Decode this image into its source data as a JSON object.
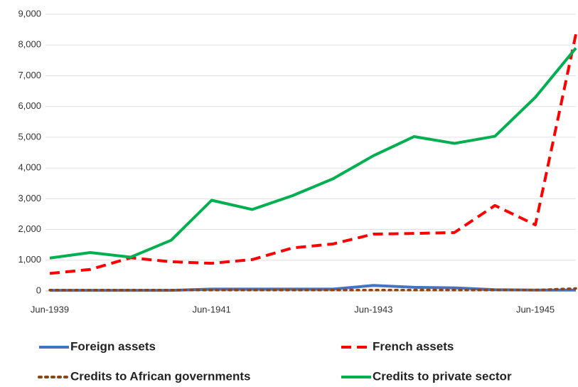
{
  "chart_data": {
    "type": "line",
    "categories": [
      "Jun-1939",
      null,
      null,
      null,
      "Jun-1941",
      null,
      null,
      null,
      "Jun-1943",
      null,
      null,
      null,
      "Jun-1945",
      null
    ],
    "series": [
      {
        "name": "Foreign assets",
        "color": "#4472c4",
        "style": "solid",
        "values": [
          20,
          20,
          20,
          20,
          60,
          60,
          60,
          60,
          180,
          120,
          100,
          40,
          30,
          30
        ]
      },
      {
        "name": "French assets",
        "color": "#ff0000",
        "style": "dashed",
        "values": [
          570,
          700,
          1080,
          950,
          900,
          1020,
          1400,
          1530,
          1850,
          1870,
          1900,
          2780,
          2150,
          8350
        ]
      },
      {
        "name": "Credits to African governments",
        "color": "#8b4513",
        "style": "dotted",
        "values": [
          30,
          30,
          30,
          30,
          30,
          30,
          30,
          30,
          30,
          30,
          30,
          30,
          30,
          80
        ]
      },
      {
        "name": "Credits to private sector",
        "color": "#00b050",
        "style": "solid",
        "values": [
          1070,
          1250,
          1100,
          1650,
          2950,
          2650,
          3100,
          3650,
          4400,
          5020,
          4800,
          5030,
          6300,
          7900
        ]
      }
    ],
    "ylim": [
      0,
      9000
    ],
    "yticks": [
      0,
      {
        "value": 1000,
        "label": "1,000"
      },
      {
        "value": 2000,
        "label": "2,000"
      },
      {
        "value": 3000,
        "label": "3,000"
      },
      {
        "value": 4000,
        "label": "4,000"
      },
      {
        "value": 5000,
        "label": "5,000"
      },
      {
        "value": 6000,
        "label": "6,000"
      },
      {
        "value": 7000,
        "label": "7,000"
      },
      {
        "value": 8000,
        "label": "8,000"
      },
      {
        "value": 9000,
        "label": "9,000"
      }
    ],
    "grid": true,
    "legend": "bottom"
  }
}
